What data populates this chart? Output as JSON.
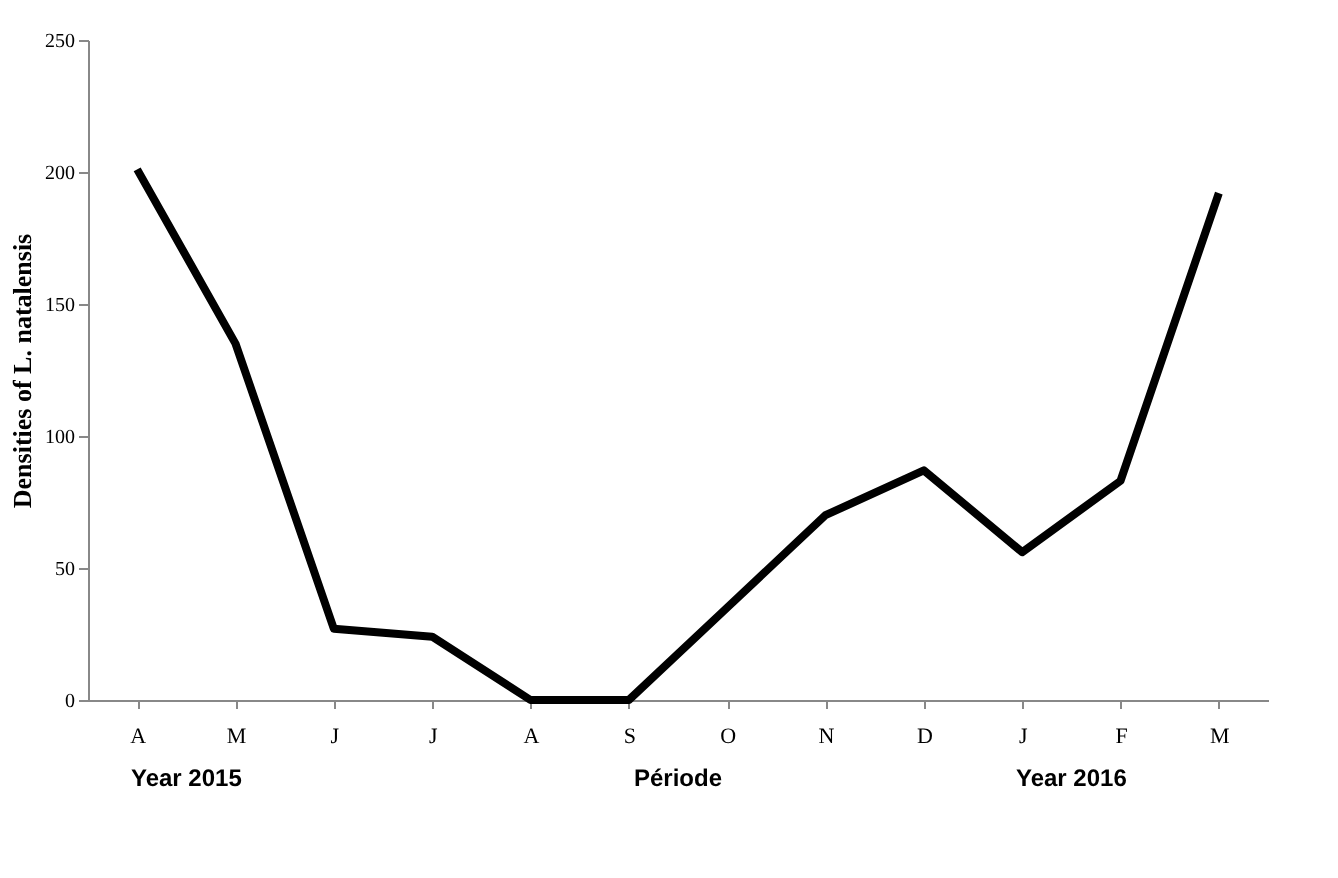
{
  "chart_data": {
    "type": "line",
    "ylabel": "Densities of L. natalensis",
    "xlabel": "Période",
    "categories": [
      "A",
      "M",
      "J",
      "J",
      "A",
      "S",
      "O",
      "N",
      "D",
      "J",
      "F",
      "M"
    ],
    "series": [
      {
        "color": "#000000",
        "values": [
          201,
          135,
          27,
          24,
          0,
          0,
          35,
          70,
          87,
          56,
          83,
          192
        ]
      }
    ],
    "ylim": [
      0,
      250
    ],
    "yticks": [
      0,
      50,
      100,
      150,
      200,
      250
    ],
    "grid": false,
    "legend": false,
    "marker": "none",
    "line_style": "solid",
    "annotations": [
      "Year 2015",
      "Year 2016"
    ]
  }
}
